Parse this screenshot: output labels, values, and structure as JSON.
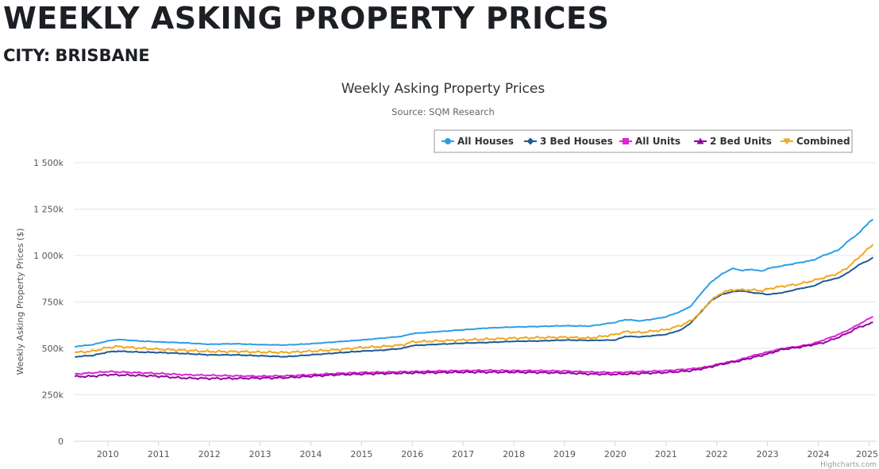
{
  "header": {
    "title": "WEEKLY ASKING PROPERTY PRICES",
    "subtitle_label": "CITY:",
    "subtitle_value": "BRISBANE"
  },
  "credits": "Highcharts.com",
  "chart_data": {
    "type": "line",
    "title": "Weekly Asking Property Prices",
    "subtitle": "Source: SQM Research",
    "xlabel": "",
    "ylabel": "Weekly Asking Property Prices ($)",
    "x_ticks": [
      "2010",
      "2011",
      "2012",
      "2013",
      "2014",
      "2015",
      "2016",
      "2017",
      "2018",
      "2019",
      "2020",
      "2021",
      "2022",
      "2023",
      "2024",
      "2025"
    ],
    "x_range": [
      2009.33,
      2025.15
    ],
    "y_ticks": [
      "0",
      "250k",
      "500k",
      "750k",
      "1 000k",
      "1 250k",
      "1 500k"
    ],
    "ylim": [
      0,
      1500000
    ],
    "grid": "horizontal",
    "legend_position": "top-right",
    "series": [
      {
        "name": "All Houses",
        "color": "#2b9ee8",
        "marker": "circle",
        "x": [
          2009.35,
          2009.7,
          2010.0,
          2010.2,
          2010.6,
          2011.0,
          2011.5,
          2012.0,
          2012.5,
          2013.0,
          2013.5,
          2014.0,
          2014.5,
          2015.0,
          2015.4,
          2015.8,
          2016.0,
          2016.5,
          2017.0,
          2017.5,
          2018.0,
          2018.5,
          2019.0,
          2019.5,
          2020.0,
          2020.2,
          2020.5,
          2020.8,
          2021.0,
          2021.3,
          2021.5,
          2021.7,
          2021.9,
          2022.1,
          2022.3,
          2022.5,
          2022.7,
          2022.9,
          2023.0,
          2023.3,
          2023.6,
          2023.9,
          2024.1,
          2024.4,
          2024.6,
          2024.8,
          2025.0,
          2025.08
        ],
        "values": [
          510000,
          520000,
          540000,
          548000,
          540000,
          535000,
          530000,
          522000,
          525000,
          520000,
          518000,
          525000,
          535000,
          545000,
          555000,
          565000,
          580000,
          590000,
          600000,
          610000,
          615000,
          618000,
          622000,
          620000,
          640000,
          655000,
          648000,
          660000,
          670000,
          700000,
          730000,
          800000,
          860000,
          900000,
          930000,
          920000,
          925000,
          915000,
          930000,
          945000,
          960000,
          975000,
          1000000,
          1030000,
          1080000,
          1120000,
          1180000,
          1195000
        ]
      },
      {
        "name": "3 Bed Houses",
        "color": "#1f5a96",
        "marker": "diamond",
        "x": [
          2009.35,
          2009.7,
          2010.0,
          2010.2,
          2010.6,
          2011.0,
          2011.5,
          2012.0,
          2012.5,
          2013.0,
          2013.5,
          2014.0,
          2014.5,
          2015.0,
          2015.4,
          2015.8,
          2016.0,
          2016.5,
          2017.0,
          2017.5,
          2018.0,
          2018.5,
          2019.0,
          2019.5,
          2020.0,
          2020.2,
          2020.5,
          2020.8,
          2021.0,
          2021.3,
          2021.5,
          2021.7,
          2021.9,
          2022.1,
          2022.3,
          2022.5,
          2022.7,
          2022.9,
          2023.0,
          2023.3,
          2023.6,
          2023.9,
          2024.1,
          2024.4,
          2024.6,
          2024.8,
          2025.0,
          2025.08
        ],
        "values": [
          455000,
          462000,
          480000,
          485000,
          480000,
          478000,
          472000,
          465000,
          465000,
          460000,
          455000,
          465000,
          475000,
          485000,
          490000,
          500000,
          515000,
          522000,
          528000,
          532000,
          538000,
          540000,
          545000,
          543000,
          545000,
          565000,
          562000,
          570000,
          575000,
          600000,
          640000,
          700000,
          760000,
          790000,
          805000,
          810000,
          800000,
          795000,
          790000,
          800000,
          820000,
          835000,
          860000,
          880000,
          910000,
          950000,
          975000,
          990000
        ]
      },
      {
        "name": "All Units",
        "color": "#e023d6",
        "marker": "square",
        "x": [
          2009.35,
          2009.7,
          2010.0,
          2010.5,
          2011.0,
          2011.5,
          2012.0,
          2012.5,
          2013.0,
          2013.5,
          2014.0,
          2014.5,
          2015.0,
          2015.5,
          2016.0,
          2016.5,
          2017.0,
          2017.5,
          2018.0,
          2018.5,
          2019.0,
          2019.5,
          2020.0,
          2020.5,
          2021.0,
          2021.5,
          2021.8,
          2022.1,
          2022.4,
          2022.7,
          2023.0,
          2023.3,
          2023.6,
          2023.9,
          2024.1,
          2024.4,
          2024.6,
          2024.8,
          2025.0,
          2025.08
        ],
        "values": [
          362000,
          368000,
          375000,
          370000,
          365000,
          358000,
          355000,
          352000,
          350000,
          352000,
          358000,
          365000,
          370000,
          372000,
          375000,
          378000,
          380000,
          382000,
          380000,
          380000,
          378000,
          373000,
          370000,
          375000,
          380000,
          390000,
          400000,
          420000,
          435000,
          460000,
          480000,
          500000,
          510000,
          525000,
          545000,
          575000,
          600000,
          630000,
          660000,
          672000
        ]
      },
      {
        "name": "2 Bed Units",
        "color": "#8a0a9a",
        "marker": "triangle",
        "x": [
          2009.35,
          2009.7,
          2010.0,
          2010.5,
          2011.0,
          2011.5,
          2012.0,
          2012.5,
          2013.0,
          2013.5,
          2014.0,
          2014.5,
          2015.0,
          2015.5,
          2016.0,
          2016.5,
          2017.0,
          2017.5,
          2018.0,
          2018.5,
          2019.0,
          2019.5,
          2020.0,
          2020.5,
          2021.0,
          2021.5,
          2021.8,
          2022.1,
          2022.4,
          2022.7,
          2023.0,
          2023.3,
          2023.6,
          2023.9,
          2024.1,
          2024.4,
          2024.6,
          2024.8,
          2025.0,
          2025.08
        ],
        "values": [
          348000,
          350000,
          358000,
          355000,
          350000,
          340000,
          338000,
          338000,
          340000,
          342000,
          350000,
          358000,
          362000,
          365000,
          368000,
          370000,
          372000,
          372000,
          372000,
          370000,
          368000,
          362000,
          360000,
          365000,
          370000,
          380000,
          395000,
          415000,
          430000,
          450000,
          470000,
          495000,
          505000,
          520000,
          530000,
          560000,
          585000,
          615000,
          630000,
          640000
        ]
      },
      {
        "name": "Combined",
        "color": "#f2a81b",
        "marker": "triangle-down",
        "x": [
          2009.35,
          2009.7,
          2010.0,
          2010.2,
          2010.6,
          2011.0,
          2011.5,
          2012.0,
          2012.5,
          2013.0,
          2013.5,
          2014.0,
          2014.5,
          2015.0,
          2015.4,
          2015.8,
          2016.0,
          2016.5,
          2017.0,
          2017.5,
          2018.0,
          2018.5,
          2019.0,
          2019.5,
          2020.0,
          2020.2,
          2020.5,
          2020.8,
          2021.0,
          2021.3,
          2021.5,
          2021.7,
          2021.9,
          2022.1,
          2022.3,
          2022.5,
          2022.7,
          2022.9,
          2023.0,
          2023.3,
          2023.6,
          2023.9,
          2024.1,
          2024.4,
          2024.6,
          2024.8,
          2025.0,
          2025.08
        ],
        "values": [
          478000,
          485000,
          505000,
          510000,
          502000,
          495000,
          490000,
          483000,
          483000,
          480000,
          478000,
          485000,
          492000,
          505000,
          510000,
          518000,
          535000,
          540000,
          545000,
          550000,
          555000,
          558000,
          560000,
          555000,
          575000,
          590000,
          585000,
          595000,
          600000,
          625000,
          650000,
          700000,
          760000,
          800000,
          815000,
          815000,
          815000,
          810000,
          820000,
          835000,
          845000,
          865000,
          880000,
          905000,
          940000,
          990000,
          1040000,
          1060000
        ]
      }
    ]
  }
}
